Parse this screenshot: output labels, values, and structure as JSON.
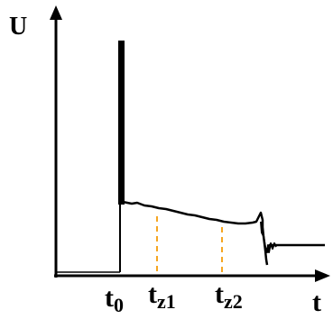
{
  "labels": {
    "y_axis": "U",
    "x_axis": "t",
    "t0": {
      "main": "t",
      "sub": "0"
    },
    "tz1": {
      "main": "t",
      "sub": "z1"
    },
    "tz2": {
      "main": "t",
      "sub": "z2"
    }
  },
  "colors": {
    "axis": "#000000",
    "curve": "#000000",
    "marker": "#f5a623"
  }
}
